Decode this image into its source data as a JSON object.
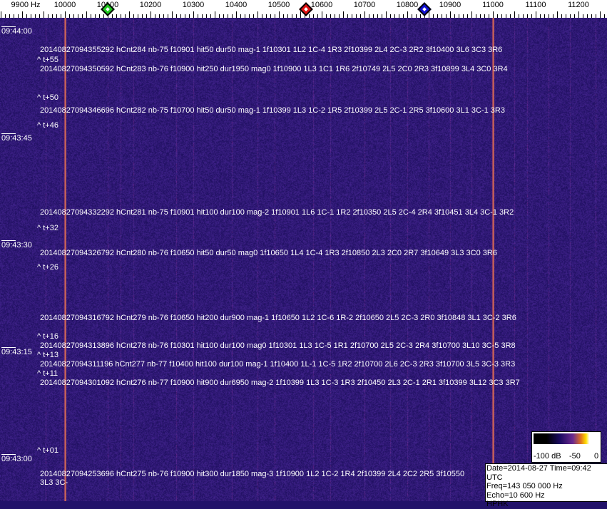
{
  "frequency_axis": {
    "unit_label": "9900 Hz",
    "labels": [
      "10000",
      "10100",
      "10200",
      "10300",
      "10400",
      "10500",
      "10600",
      "10700",
      "10800",
      "10900",
      "11000",
      "11100",
      "11200"
    ],
    "markers": [
      {
        "name": "green-marker",
        "freq_hz": 10100,
        "color": "#1ec81e"
      },
      {
        "name": "red-marker",
        "freq_hz": 10563,
        "color": "#e01010"
      },
      {
        "name": "blue-marker",
        "freq_hz": 10840,
        "color": "#1010d0"
      }
    ]
  },
  "time_labels": [
    "09:44:00",
    "09:43:45",
    "09:43:30",
    "09:43:15",
    "09:43:00"
  ],
  "events": [
    "20140827094355292 hCnt284 nb-75 f10901 hit50 dur50 mag-1 1f10301 1L2 1C-4 1R3 2f10399 2L4 2C-3 2R2 3f10400 3L6 3C3 3R6",
    "20140827094350592 hCnt283 nb-76 f10900 hit250 dur1950 mag0 1f10900 1L3 1C1 1R6 2f10749 2L5 2C0 2R3 3f10899 3L4 3C0 3R4",
    "20140827094346696 hCnt282 nb-75 f10700 hit50 dur50 mag-1 1f10399 1L3 1C-2 1R5 2f10399 2L5 2C-1 2R5 3f10600 3L1 3C-1 3R3",
    "20140827094332292 hCnt281 nb-75 f10901 hit100 dur100 mag-2 1f10901 1L6 1C-1 1R2 2f10350 2L5 2C-4 2R4 3f10451 3L4 3C-1 3R2",
    "20140827094326792 hCnt280 nb-76 f10650 hit50 dur50 mag0 1f10650 1L4 1C-4 1R3 2f10850 2L3 2C0 2R7 3f10649 3L3 3C0 3R6",
    "20140827094316792 hCnt279 nb-76 f10650 hit200 dur900 mag-1 1f10650 1L2 1C-6 1R-2 2f10650 2L5 2C-3 2R0 3f10848 3L1 3C-2 3R6",
    "20140827094313896 hCnt278 nb-76 f10301 hit100 dur100 mag0 1f10301 1L3 1C-5 1R1 2f10700 2L5 2C-3 2R4 3f10700 3L10 3C-5 3R8",
    "20140827094311196 hCnt277 nb-77 f10400 hit100 dur100 mag-1 1f10400 1L-1 1C-5 1R2 2f10700 2L6 2C-3 2R3 3f10700 3L5 3C-3 3R3",
    "20140827094301092 hCnt276 nb-77 f10900 hit900 dur6950 mag-2 1f10399 1L3 1C-3 1R3 2f10450 2L3 2C-1 2R1 3f10399 3L12 3C3 3R7",
    "20140827094253696 hCnt275 nb-76 f10900 hit300 dur1850 mag-3 1f10900 1L2 1C-2 1R4 2f10399 2L4 2C2 2R5 3f10550 3L3 3C-"
  ],
  "time_offsets": [
    "^ t+55",
    "^ t+50",
    "^ t+46",
    "^ t+32",
    "^ t+26",
    "^ t+16",
    "^ t+13",
    "^ t+11",
    "^ t+01"
  ],
  "legend": {
    "labels": [
      "-100 dB",
      "-50",
      "0"
    ]
  },
  "info": {
    "date_time": "Date=2014-08-27 Time=09:42 UTC",
    "freq": "Freq=143 050 000 Hz",
    "echo": "Echo=10 600 Hz",
    "station": "HPHK"
  },
  "colors": {
    "background": "#22126a",
    "carrier": "#e08040"
  }
}
